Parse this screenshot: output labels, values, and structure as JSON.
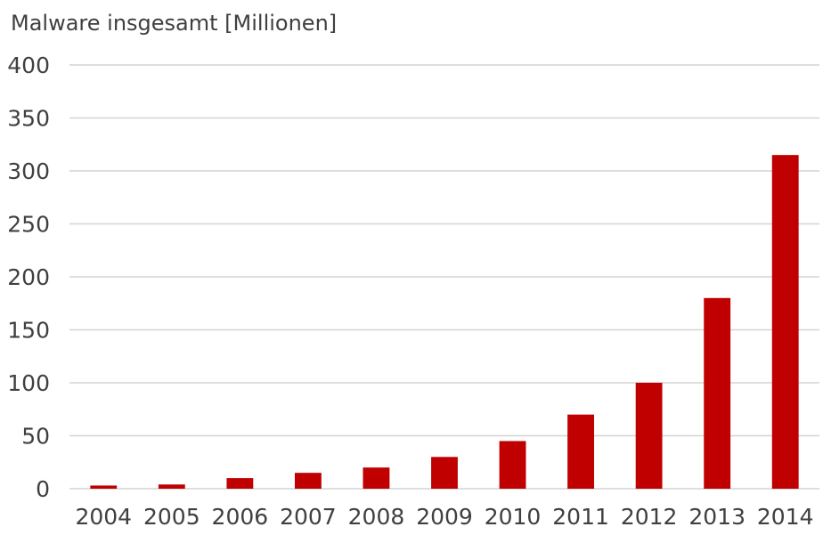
{
  "chart_data": {
    "type": "bar",
    "title": "Malware insgesamt [Millionen]",
    "xlabel": "",
    "ylabel": "",
    "categories": [
      "2004",
      "2005",
      "2006",
      "2007",
      "2008",
      "2009",
      "2010",
      "2011",
      "2012",
      "2013",
      "2014"
    ],
    "values": [
      3,
      4,
      10,
      15,
      20,
      30,
      45,
      70,
      100,
      180,
      315
    ],
    "ylim": [
      0,
      400
    ],
    "yticks": [
      0,
      50,
      100,
      150,
      200,
      250,
      300,
      350,
      400
    ],
    "grid": true,
    "legend": "none",
    "bar_color": "#c00000"
  }
}
